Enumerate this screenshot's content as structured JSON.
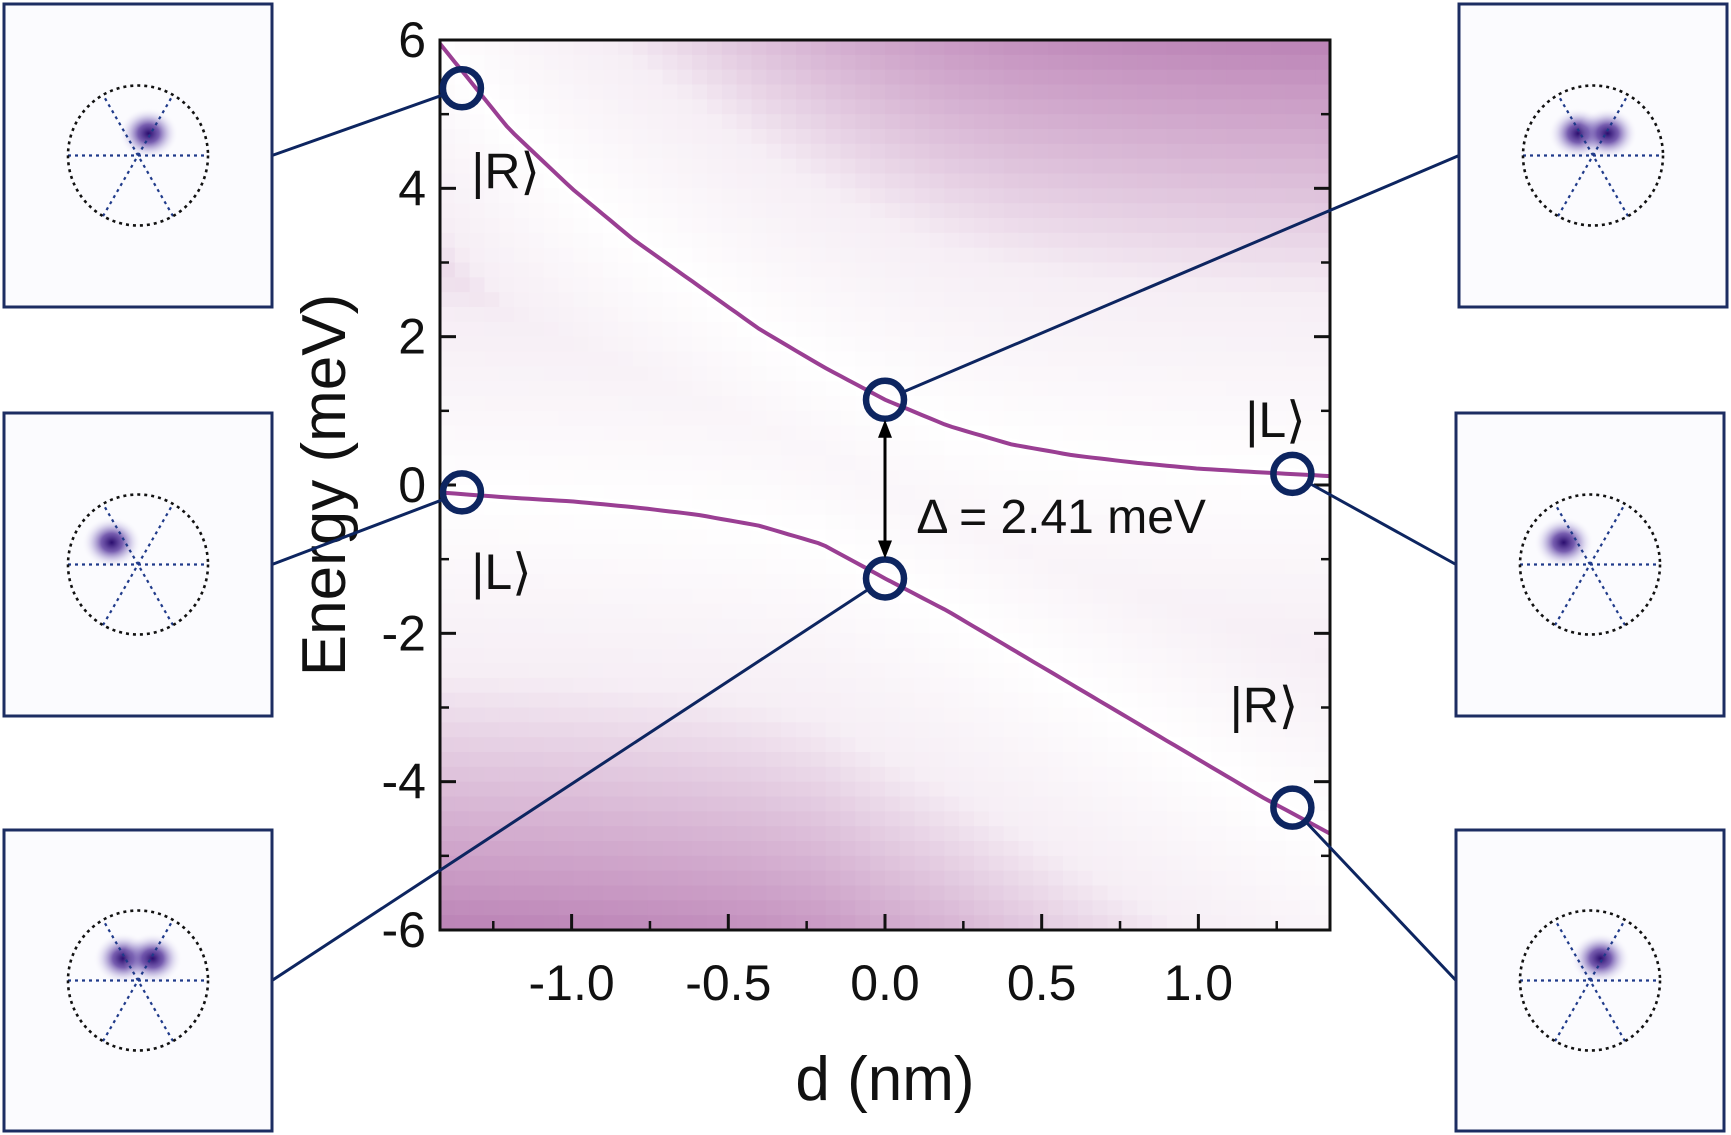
{
  "chart_data": {
    "type": "heatmap",
    "xlabel": "d (nm)",
    "ylabel": "Energy (meV)",
    "xlim": [
      -1.42,
      1.42
    ],
    "ylim": [
      -6,
      6
    ],
    "x_ticks": [
      "-1.0",
      "-0.5",
      "0.0",
      "0.5",
      "1.0"
    ],
    "x_tick_values": [
      -1.0,
      -0.5,
      0.0,
      0.5,
      1.0
    ],
    "y_ticks": [
      "-6",
      "-4",
      "-2",
      "0",
      "2",
      "4",
      "6"
    ],
    "y_tick_values": [
      -6,
      -4,
      -2,
      0,
      2,
      4,
      6
    ],
    "colormap": [
      "#ffffff",
      "#f6eef5",
      "#c99ac4",
      "#8f3c8a"
    ],
    "series": [
      {
        "values": [
          {
            "x": -1.42,
            "y": 5.95
          },
          {
            "x": -1.2,
            "y": 4.8
          },
          {
            "x": -1.0,
            "y": 4.0
          },
          {
            "x": -0.8,
            "y": 3.3
          },
          {
            "x": -0.6,
            "y": 2.7
          },
          {
            "x": -0.4,
            "y": 2.1
          },
          {
            "x": -0.2,
            "y": 1.6
          },
          {
            "x": 0.0,
            "y": 1.15
          },
          {
            "x": 0.2,
            "y": 0.8
          },
          {
            "x": 0.4,
            "y": 0.55
          },
          {
            "x": 0.6,
            "y": 0.4
          },
          {
            "x": 0.8,
            "y": 0.3
          },
          {
            "x": 1.0,
            "y": 0.22
          },
          {
            "x": 1.2,
            "y": 0.17
          },
          {
            "x": 1.42,
            "y": 0.12
          }
        ]
      },
      {
        "values": [
          {
            "x": -1.42,
            "y": -0.1
          },
          {
            "x": -1.2,
            "y": -0.17
          },
          {
            "x": -1.0,
            "y": -0.22
          },
          {
            "x": -0.8,
            "y": -0.3
          },
          {
            "x": -0.6,
            "y": -0.4
          },
          {
            "x": -0.4,
            "y": -0.55
          },
          {
            "x": -0.2,
            "y": -0.8
          },
          {
            "x": 0.0,
            "y": -1.26
          },
          {
            "x": 0.2,
            "y": -1.7
          },
          {
            "x": 0.4,
            "y": -2.2
          },
          {
            "x": 0.6,
            "y": -2.7
          },
          {
            "x": 0.8,
            "y": -3.2
          },
          {
            "x": 1.0,
            "y": -3.7
          },
          {
            "x": 1.2,
            "y": -4.2
          },
          {
            "x": 1.42,
            "y": -4.7
          }
        ]
      }
    ],
    "annotations": [
      {
        "text": "|R⟩",
        "x": -1.32,
        "y": 4.0
      },
      {
        "text": "|L⟩",
        "x": -1.32,
        "y": -1.4
      },
      {
        "text": "|L⟩",
        "x": 1.15,
        "y": 0.65
      },
      {
        "text": "|R⟩",
        "x": 1.1,
        "y": -3.2
      },
      {
        "text": "Δ = 2.41 meV",
        "x": 0.1,
        "y": -0.65
      }
    ],
    "gap": {
      "x": 0.0,
      "upper": 1.15,
      "lower": -1.26
    },
    "markers": [
      {
        "x": -1.35,
        "y": 5.35,
        "inset": "top-left"
      },
      {
        "x": -1.35,
        "y": -0.1,
        "inset": "middle-left"
      },
      {
        "x": 0.0,
        "y": -1.26,
        "inset": "bottom-left"
      },
      {
        "x": 0.0,
        "y": 1.15,
        "inset": "top-right"
      },
      {
        "x": 1.3,
        "y": 0.15,
        "inset": "middle-right"
      },
      {
        "x": 1.3,
        "y": -4.35,
        "inset": "bottom-right"
      }
    ],
    "insets": [
      {
        "id": "top-left",
        "lobes": [
          {
            "a": 0.3,
            "r": 0.5
          }
        ]
      },
      {
        "id": "middle-left",
        "lobes": [
          {
            "a": -0.75,
            "r": 0.5
          }
        ]
      },
      {
        "id": "bottom-left",
        "lobes": [
          {
            "a": -0.42,
            "r": 0.5
          },
          {
            "a": 0.42,
            "r": 0.5
          }
        ]
      },
      {
        "id": "top-right",
        "lobes": [
          {
            "a": -0.42,
            "r": 0.5
          },
          {
            "a": 0.42,
            "r": 0.5
          }
        ]
      },
      {
        "id": "middle-right",
        "lobes": [
          {
            "a": -0.75,
            "r": 0.5
          }
        ]
      },
      {
        "id": "bottom-right",
        "lobes": [
          {
            "a": 0.3,
            "r": 0.5
          }
        ]
      }
    ],
    "colors": {
      "line": "#0d2560",
      "marker": "#0d2560",
      "frame": "#1c2d62",
      "lobe": "#2a0d6e",
      "arrow": "#000000"
    }
  }
}
